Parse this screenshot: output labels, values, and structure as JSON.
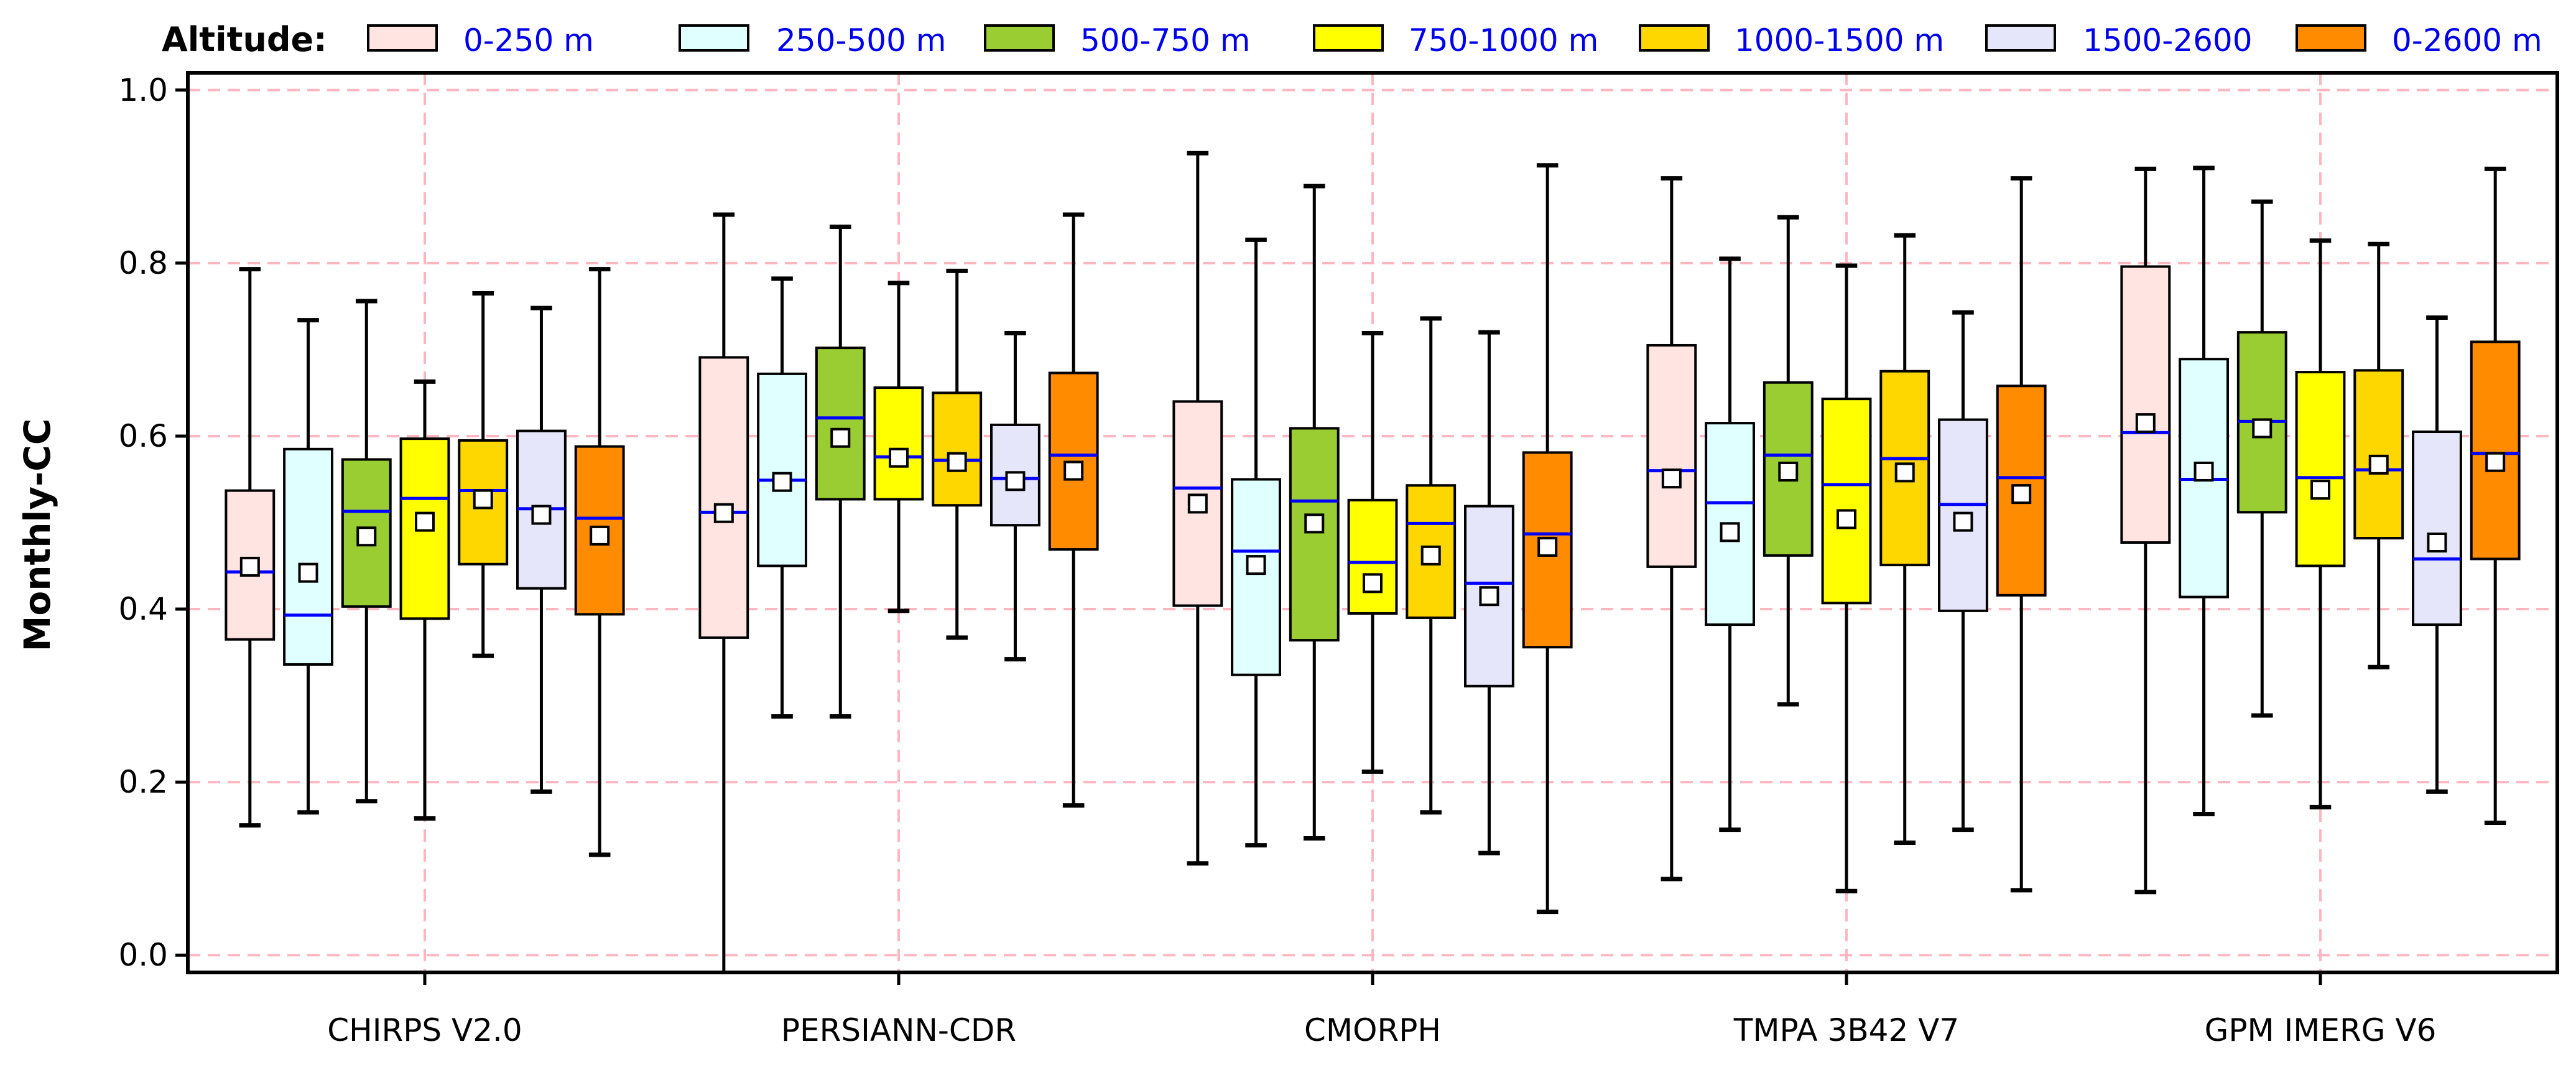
{
  "chart_data": {
    "type": "box",
    "ylabel": "Monthly-CC",
    "xlabel": "",
    "ylim": [
      -0.02,
      1.02
    ],
    "yticks": [
      "0.0",
      "0.2",
      "0.4",
      "0.6",
      "0.8",
      "1.0"
    ],
    "grid": true,
    "grid_color": "#ffb6c1",
    "median_color": "#0000ff",
    "mean_marker": "white-square",
    "legend": {
      "title": "Altitude:",
      "placement": "top",
      "entries": [
        "0-250 m",
        "250-500 m",
        "500-750 m",
        "750-1000 m",
        "1000-1500 m",
        "1500-2600",
        "0-2600 m"
      ],
      "colors": [
        "#ffe4e1",
        "#e0ffff",
        "#9acd32",
        "#ffff00",
        "#ffd700",
        "#e6e6fa",
        "#ff8c00"
      ]
    },
    "categories": [
      "CHIRPS V2.0",
      "PERSIANN-CDR",
      "CMORPH",
      "TMPA 3B42 V7",
      "GPM IMERG V6"
    ],
    "boxes": [
      [
        {
          "min": 0.15,
          "q1": 0.365,
          "median": 0.443,
          "q3": 0.537,
          "max": 0.793,
          "mean": 0.449
        },
        {
          "min": 0.165,
          "q1": 0.336,
          "median": 0.393,
          "q3": 0.585,
          "max": 0.734,
          "mean": 0.442
        },
        {
          "min": 0.178,
          "q1": 0.403,
          "median": 0.513,
          "q3": 0.573,
          "max": 0.756,
          "mean": 0.484
        },
        {
          "min": 0.158,
          "q1": 0.389,
          "median": 0.528,
          "q3": 0.597,
          "max": 0.663,
          "mean": 0.501
        },
        {
          "min": 0.346,
          "q1": 0.452,
          "median": 0.537,
          "q3": 0.595,
          "max": 0.765,
          "mean": 0.527
        },
        {
          "min": 0.189,
          "q1": 0.424,
          "median": 0.516,
          "q3": 0.606,
          "max": 0.748,
          "mean": 0.509
        },
        {
          "min": 0.116,
          "q1": 0.394,
          "median": 0.505,
          "q3": 0.588,
          "max": 0.793,
          "mean": 0.485
        }
      ],
      [
        {
          "min": -0.02,
          "q1": 0.367,
          "median": 0.512,
          "q3": 0.691,
          "max": 0.856,
          "mean": 0.511
        },
        {
          "min": 0.276,
          "q1": 0.45,
          "median": 0.549,
          "q3": 0.672,
          "max": 0.782,
          "mean": 0.547
        },
        {
          "min": 0.276,
          "q1": 0.527,
          "median": 0.621,
          "q3": 0.702,
          "max": 0.842,
          "mean": 0.598
        },
        {
          "min": 0.398,
          "q1": 0.527,
          "median": 0.576,
          "q3": 0.656,
          "max": 0.777,
          "mean": 0.575
        },
        {
          "min": 0.367,
          "q1": 0.52,
          "median": 0.572,
          "q3": 0.65,
          "max": 0.791,
          "mean": 0.57
        },
        {
          "min": 0.342,
          "q1": 0.497,
          "median": 0.551,
          "q3": 0.613,
          "max": 0.719,
          "mean": 0.548
        },
        {
          "min": 0.173,
          "q1": 0.469,
          "median": 0.578,
          "q3": 0.673,
          "max": 0.856,
          "mean": 0.56
        }
      ],
      [
        {
          "min": 0.106,
          "q1": 0.404,
          "median": 0.54,
          "q3": 0.64,
          "max": 0.927,
          "mean": 0.522
        },
        {
          "min": 0.127,
          "q1": 0.324,
          "median": 0.467,
          "q3": 0.55,
          "max": 0.827,
          "mean": 0.451
        },
        {
          "min": 0.135,
          "q1": 0.364,
          "median": 0.525,
          "q3": 0.609,
          "max": 0.889,
          "mean": 0.499
        },
        {
          "min": 0.212,
          "q1": 0.395,
          "median": 0.454,
          "q3": 0.526,
          "max": 0.719,
          "mean": 0.43
        },
        {
          "min": 0.165,
          "q1": 0.39,
          "median": 0.499,
          "q3": 0.543,
          "max": 0.736,
          "mean": 0.462
        },
        {
          "min": 0.118,
          "q1": 0.311,
          "median": 0.43,
          "q3": 0.519,
          "max": 0.72,
          "mean": 0.415
        },
        {
          "min": 0.05,
          "q1": 0.356,
          "median": 0.487,
          "q3": 0.581,
          "max": 0.913,
          "mean": 0.472
        }
      ],
      [
        {
          "min": 0.088,
          "q1": 0.449,
          "median": 0.56,
          "q3": 0.705,
          "max": 0.898,
          "mean": 0.551
        },
        {
          "min": 0.145,
          "q1": 0.382,
          "median": 0.523,
          "q3": 0.615,
          "max": 0.805,
          "mean": 0.489
        },
        {
          "min": 0.29,
          "q1": 0.462,
          "median": 0.578,
          "q3": 0.662,
          "max": 0.853,
          "mean": 0.559
        },
        {
          "min": 0.074,
          "q1": 0.407,
          "median": 0.544,
          "q3": 0.643,
          "max": 0.797,
          "mean": 0.504
        },
        {
          "min": 0.13,
          "q1": 0.451,
          "median": 0.574,
          "q3": 0.675,
          "max": 0.832,
          "mean": 0.558
        },
        {
          "min": 0.145,
          "q1": 0.398,
          "median": 0.521,
          "q3": 0.619,
          "max": 0.743,
          "mean": 0.501
        },
        {
          "min": 0.075,
          "q1": 0.416,
          "median": 0.552,
          "q3": 0.658,
          "max": 0.898,
          "mean": 0.533
        }
      ],
      [
        {
          "min": 0.073,
          "q1": 0.477,
          "median": 0.604,
          "q3": 0.796,
          "max": 0.909,
          "mean": 0.615
        },
        {
          "min": 0.163,
          "q1": 0.414,
          "median": 0.55,
          "q3": 0.689,
          "max": 0.91,
          "mean": 0.559
        },
        {
          "min": 0.277,
          "q1": 0.512,
          "median": 0.617,
          "q3": 0.72,
          "max": 0.871,
          "mean": 0.609
        },
        {
          "min": 0.171,
          "q1": 0.45,
          "median": 0.552,
          "q3": 0.674,
          "max": 0.826,
          "mean": 0.538
        },
        {
          "min": 0.333,
          "q1": 0.482,
          "median": 0.561,
          "q3": 0.676,
          "max": 0.822,
          "mean": 0.567
        },
        {
          "min": 0.189,
          "q1": 0.382,
          "median": 0.458,
          "q3": 0.605,
          "max": 0.737,
          "mean": 0.477
        },
        {
          "min": 0.153,
          "q1": 0.458,
          "median": 0.58,
          "q3": 0.709,
          "max": 0.909,
          "mean": 0.57
        }
      ]
    ]
  }
}
